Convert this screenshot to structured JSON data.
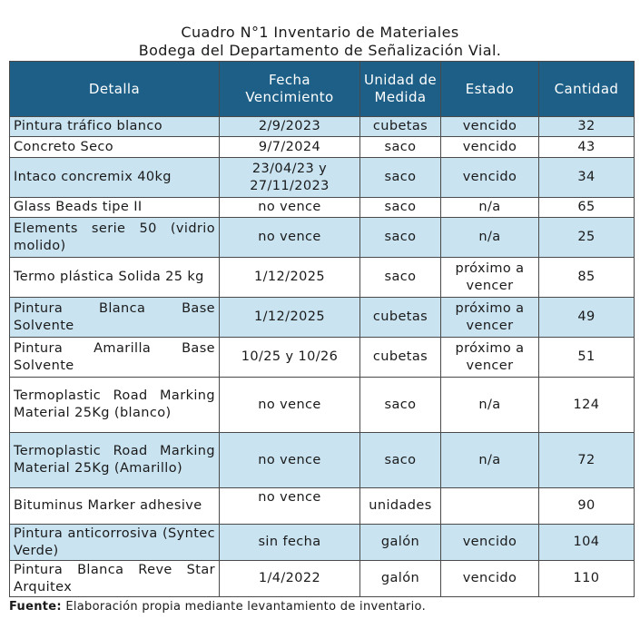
{
  "title_line1": "Cuadro N°1 Inventario de Materiales",
  "title_line2": "Bodega del Departamento de Señalización Vial.",
  "headers": [
    "Detalla",
    "Fecha Vencimiento",
    "Unidad de Medida",
    "Estado",
    "Cantidad"
  ],
  "rows": [
    {
      "detalla": "Pintura tráfico blanco",
      "fecha": "2/9/2023",
      "unidad": "cubetas",
      "estado": "vencido",
      "cantidad": "32"
    },
    {
      "detalla": "Concreto Seco",
      "fecha": "9/7/2024",
      "unidad": "saco",
      "estado": "vencido",
      "cantidad": "43"
    },
    {
      "detalla": "Intaco concremix 40kg",
      "fecha": "23/04/23 y 27/11/2023",
      "unidad": "saco",
      "estado": "vencido",
      "cantidad": "34"
    },
    {
      "detalla": "Glass Beads tipe II",
      "fecha": "no vence",
      "unidad": "saco",
      "estado": "n/a",
      "cantidad": "65"
    },
    {
      "detalla": "Elements serie 50 (vidrio molido)",
      "fecha": "no vence",
      "unidad": "saco",
      "estado": "n/a",
      "cantidad": "25"
    },
    {
      "detalla": "Termo plástica Solida 25 kg",
      "fecha": "1/12/2025",
      "unidad": "saco",
      "estado": "próximo a vencer",
      "cantidad": "85"
    },
    {
      "detalla": "Pintura Blanca Base Solvente",
      "fecha": "1/12/2025",
      "unidad": "cubetas",
      "estado": "próximo a vencer",
      "cantidad": "49"
    },
    {
      "detalla": "Pintura Amarilla Base Solvente",
      "fecha": "10/25 y 10/26",
      "unidad": "cubetas",
      "estado": "próximo a vencer",
      "cantidad": "51"
    },
    {
      "detalla": "Termoplastic Road Marking Material 25Kg (blanco)",
      "fecha": "no vence",
      "unidad": "saco",
      "estado": "n/a",
      "cantidad": "124"
    },
    {
      "detalla": "Termoplastic Road Marking Material 25Kg (Amarillo)",
      "fecha": "no vence",
      "unidad": "saco",
      "estado": "n/a",
      "cantidad": "72"
    },
    {
      "detalla": "Bituminus Marker adhesive",
      "fecha": "no vence",
      "unidad": "unidades",
      "estado": "",
      "cantidad": "90"
    },
    {
      "detalla": "Pintura anticorrosiva (Syntec Verde)",
      "fecha": "sin fecha",
      "unidad": "galón",
      "estado": "vencido",
      "cantidad": "104"
    },
    {
      "detalla": "Pintura Blanca Reve Star Arquitex",
      "fecha": "1/4/2022",
      "unidad": "galón",
      "estado": "vencido",
      "cantidad": "110"
    }
  ],
  "source_label": "Fuente:",
  "source_text": " Elaboración propia mediante levantamiento de inventario.",
  "colors": {
    "header_bg": "#1d5f86",
    "alt_row_bg": "#c9e3f1"
  }
}
